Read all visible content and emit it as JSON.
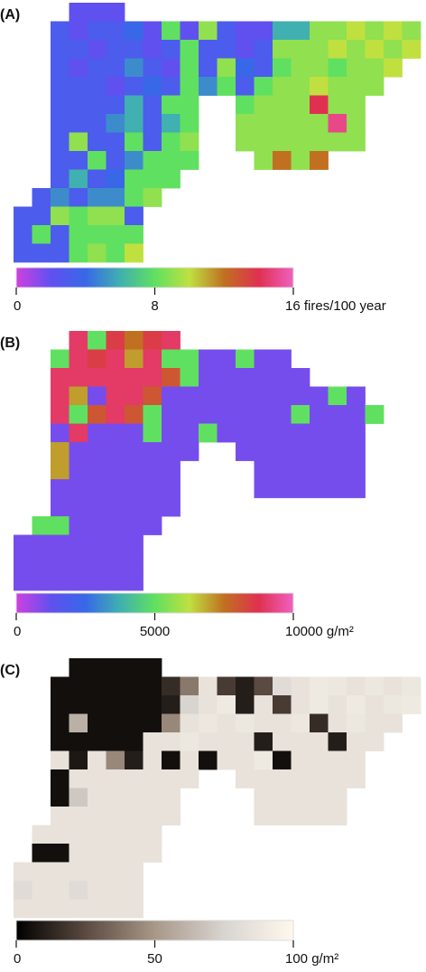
{
  "chart_data": [
    {
      "type": "heatmap",
      "label": "(A)",
      "clim": [
        0,
        16
      ],
      "colormap": [
        "#d040e0",
        "#6050f0",
        "#3868e8",
        "#40b0b0",
        "#60e060",
        "#c0e040",
        "#c07020",
        "#e03050",
        "#f060c0"
      ],
      "ticks": [
        0,
        8,
        {
          "value": 16,
          "label": "16 fires/100 year"
        }
      ],
      "values": [
        [
          null,
          null,
          null,
          2,
          2,
          2,
          null,
          null,
          null,
          null,
          null,
          null,
          null,
          null,
          null,
          null,
          null,
          null,
          null,
          null,
          null,
          null
        ],
        [
          null,
          null,
          3,
          2,
          3,
          3,
          4,
          2,
          8,
          2,
          9,
          3,
          2,
          2,
          6,
          6,
          9,
          9,
          10,
          9,
          10,
          9
        ],
        [
          null,
          null,
          3,
          3,
          2,
          3,
          3,
          2,
          3,
          8,
          3,
          3,
          2,
          3,
          9,
          9,
          9,
          10,
          9,
          10,
          9,
          10
        ],
        [
          null,
          null,
          3,
          2,
          3,
          3,
          5,
          3,
          2,
          8,
          3,
          9,
          4,
          3,
          8,
          9,
          9,
          8,
          9,
          9,
          10,
          null
        ],
        [
          null,
          null,
          3,
          3,
          3,
          2,
          3,
          4,
          3,
          8,
          5,
          8,
          3,
          8,
          9,
          9,
          10,
          9,
          9,
          9,
          null,
          null
        ],
        [
          null,
          null,
          3,
          3,
          3,
          3,
          6,
          3,
          8,
          8,
          null,
          null,
          8,
          9,
          9,
          9,
          14,
          9,
          9,
          null,
          null,
          null
        ],
        [
          null,
          null,
          3,
          3,
          3,
          5,
          6,
          3,
          6,
          8,
          null,
          null,
          9,
          9,
          9,
          9,
          9,
          15,
          9,
          null,
          null,
          null
        ],
        [
          null,
          null,
          3,
          9,
          3,
          3,
          8,
          3,
          8,
          9,
          null,
          null,
          9,
          9,
          9,
          9,
          9,
          9,
          9,
          null,
          null,
          null
        ],
        [
          null,
          null,
          3,
          3,
          8,
          3,
          5,
          8,
          8,
          8,
          null,
          null,
          null,
          9,
          12,
          9,
          12,
          null,
          null,
          null,
          null,
          null
        ],
        [
          null,
          null,
          3,
          6,
          3,
          4,
          8,
          8,
          8,
          null,
          null,
          null,
          null,
          null,
          null,
          null,
          null,
          null,
          null,
          null,
          null,
          null
        ],
        [
          null,
          3,
          5,
          3,
          5,
          5,
          8,
          9,
          null,
          null,
          null,
          null,
          null,
          null,
          null,
          null,
          null,
          null,
          null,
          null,
          null,
          null
        ],
        [
          3,
          3,
          9,
          8,
          9,
          9,
          3,
          null,
          null,
          null,
          null,
          null,
          null,
          null,
          null,
          null,
          null,
          null,
          null,
          null,
          null,
          null
        ],
        [
          3,
          8,
          3,
          8,
          8,
          8,
          8,
          null,
          null,
          null,
          null,
          null,
          null,
          null,
          null,
          null,
          null,
          null,
          null,
          null,
          null,
          null
        ],
        [
          3,
          3,
          3,
          8,
          9,
          8,
          10,
          null,
          null,
          null,
          null,
          null,
          null,
          null,
          null,
          null,
          null,
          null,
          null,
          null,
          null,
          null
        ]
      ]
    },
    {
      "type": "heatmap",
      "label": "(B)",
      "clim": [
        0,
        10000
      ],
      "colormap": [
        "#d040e0",
        "#6050f0",
        "#3868e8",
        "#40b0b0",
        "#60e060",
        "#c0e040",
        "#c07020",
        "#e03050",
        "#f060c0"
      ],
      "ticks": [
        0,
        5000,
        {
          "value": 10000,
          "label": "10000 g/m²"
        }
      ],
      "values": [
        [
          null,
          null,
          null,
          9000,
          5000,
          8500,
          7500,
          8500,
          9000,
          null,
          null,
          null,
          null,
          null,
          null,
          null,
          null,
          null,
          null,
          null,
          null,
          null
        ],
        [
          null,
          null,
          5000,
          9000,
          8500,
          9000,
          7000,
          9000,
          5000,
          5000,
          1000,
          1000,
          5000,
          1000,
          1000,
          null,
          null,
          null,
          null,
          null,
          null,
          null
        ],
        [
          null,
          null,
          9000,
          9000,
          9000,
          9000,
          9000,
          9000,
          8000,
          5000,
          1000,
          1000,
          1000,
          1000,
          1000,
          1000,
          null,
          null,
          null,
          null,
          null,
          null
        ],
        [
          null,
          null,
          9000,
          7000,
          1000,
          9000,
          9000,
          8000,
          1000,
          1000,
          1000,
          1000,
          1000,
          1000,
          1000,
          1000,
          1000,
          5000,
          1000,
          null,
          null,
          null
        ],
        [
          null,
          null,
          9000,
          5000,
          8000,
          9000,
          8000,
          5000,
          1000,
          1000,
          1000,
          1000,
          1000,
          1000,
          1000,
          5000,
          1000,
          1000,
          1000,
          5000,
          null,
          null
        ],
        [
          null,
          null,
          1000,
          9000,
          1000,
          1000,
          1000,
          5000,
          1000,
          1000,
          5000,
          1000,
          1000,
          1000,
          1000,
          1000,
          1000,
          1000,
          1000,
          null,
          null,
          null
        ],
        [
          null,
          null,
          7000,
          1000,
          1000,
          1000,
          1000,
          1000,
          1000,
          1000,
          null,
          null,
          1000,
          1000,
          1000,
          1000,
          1000,
          1000,
          1000,
          null,
          null,
          null
        ],
        [
          null,
          null,
          7000,
          1000,
          1000,
          1000,
          1000,
          1000,
          1000,
          null,
          null,
          null,
          null,
          1000,
          1000,
          1000,
          1000,
          1000,
          1000,
          null,
          null,
          null
        ],
        [
          null,
          null,
          1000,
          1000,
          1000,
          1000,
          1000,
          1000,
          1000,
          null,
          null,
          null,
          null,
          1000,
          1000,
          1000,
          1000,
          1000,
          1000,
          null,
          null,
          null
        ],
        [
          null,
          null,
          1000,
          1000,
          1000,
          1000,
          1000,
          1000,
          1000,
          null,
          null,
          null,
          null,
          null,
          null,
          null,
          null,
          null,
          null,
          null,
          null,
          null
        ],
        [
          null,
          5000,
          5000,
          1000,
          1000,
          1000,
          1000,
          1000,
          null,
          null,
          null,
          null,
          null,
          null,
          null,
          null,
          null,
          null,
          null,
          null,
          null,
          null
        ],
        [
          1000,
          1000,
          1000,
          1000,
          1000,
          1000,
          1000,
          null,
          null,
          null,
          null,
          null,
          null,
          null,
          null,
          null,
          null,
          null,
          null,
          null,
          null,
          null
        ],
        [
          1000,
          1000,
          1000,
          1000,
          1000,
          1000,
          1000,
          null,
          null,
          null,
          null,
          null,
          null,
          null,
          null,
          null,
          null,
          null,
          null,
          null,
          null,
          null
        ],
        [
          1000,
          1000,
          1000,
          1000,
          1000,
          1000,
          1000,
          null,
          null,
          null,
          null,
          null,
          null,
          null,
          null,
          null,
          null,
          null,
          null,
          null,
          null,
          null
        ]
      ]
    },
    {
      "type": "heatmap",
      "label": "(C)",
      "clim": [
        0,
        100
      ],
      "colormap": [
        "#000000",
        "#5a4a40",
        "#a89888",
        "#d8d4d0",
        "#fff8ec"
      ],
      "ticks": [
        0,
        50,
        {
          "value": 100,
          "label": "100 g/m²"
        }
      ],
      "values": [
        [
          null,
          null,
          null,
          5,
          5,
          5,
          5,
          5,
          null,
          null,
          null,
          null,
          null,
          null,
          null,
          null,
          null,
          null,
          null,
          null,
          null,
          null
        ],
        [
          null,
          null,
          5,
          5,
          5,
          5,
          5,
          5,
          15,
          40,
          85,
          20,
          10,
          25,
          80,
          85,
          90,
          88,
          85,
          88,
          85,
          88
        ],
        [
          null,
          null,
          5,
          5,
          5,
          5,
          5,
          5,
          10,
          75,
          85,
          90,
          10,
          85,
          20,
          85,
          90,
          85,
          90,
          85,
          88,
          90
        ],
        [
          null,
          null,
          5,
          60,
          5,
          5,
          5,
          5,
          45,
          85,
          88,
          85,
          88,
          85,
          85,
          88,
          15,
          85,
          88,
          85,
          85,
          null
        ],
        [
          null,
          null,
          5,
          5,
          5,
          5,
          5,
          85,
          85,
          88,
          85,
          85,
          85,
          10,
          85,
          85,
          85,
          10,
          85,
          85,
          null,
          null
        ],
        [
          null,
          null,
          85,
          8,
          85,
          45,
          10,
          85,
          5,
          85,
          5,
          85,
          85,
          90,
          5,
          85,
          85,
          85,
          85,
          null,
          null,
          null
        ],
        [
          null,
          null,
          5,
          85,
          85,
          85,
          85,
          85,
          85,
          85,
          null,
          null,
          85,
          85,
          85,
          85,
          85,
          85,
          85,
          null,
          null,
          null
        ],
        [
          null,
          null,
          5,
          70,
          85,
          85,
          85,
          85,
          85,
          null,
          null,
          null,
          null,
          85,
          85,
          85,
          85,
          85,
          null,
          null,
          null,
          null
        ],
        [
          null,
          null,
          85,
          85,
          85,
          85,
          85,
          85,
          85,
          null,
          null,
          null,
          null,
          85,
          85,
          85,
          85,
          85,
          null,
          null,
          null,
          null
        ],
        [
          null,
          85,
          85,
          85,
          85,
          85,
          85,
          85,
          null,
          null,
          null,
          null,
          null,
          null,
          null,
          null,
          null,
          null,
          null,
          null,
          null,
          null
        ],
        [
          null,
          5,
          5,
          85,
          85,
          85,
          85,
          85,
          null,
          null,
          null,
          null,
          null,
          null,
          null,
          null,
          null,
          null,
          null,
          null,
          null,
          null
        ],
        [
          85,
          85,
          85,
          85,
          85,
          85,
          85,
          null,
          null,
          null,
          null,
          null,
          null,
          null,
          null,
          null,
          null,
          null,
          null,
          null,
          null,
          null
        ],
        [
          80,
          85,
          85,
          80,
          85,
          85,
          85,
          null,
          null,
          null,
          null,
          null,
          null,
          null,
          null,
          null,
          null,
          null,
          null,
          null,
          null,
          null
        ],
        [
          85,
          85,
          85,
          85,
          85,
          85,
          85,
          null,
          null,
          null,
          null,
          null,
          null,
          null,
          null,
          null,
          null,
          null,
          null,
          null,
          null,
          null
        ]
      ]
    }
  ]
}
